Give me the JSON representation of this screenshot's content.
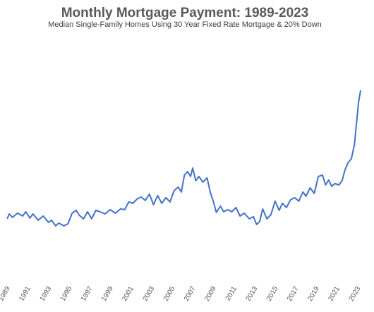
{
  "chart_data": {
    "type": "line",
    "title": "Monthly Mortgage Payment: 1989-2023",
    "subtitle": "Median Single-Family Homes Using 30 Year Fixed Rate Mortgage & 20% Down",
    "x": [
      1989.0,
      1989.2,
      1989.5,
      1990.0,
      1990.5,
      1990.8,
      1991.2,
      1991.5,
      1992.0,
      1992.5,
      1993.0,
      1993.3,
      1993.7,
      1994.0,
      1994.5,
      1994.9,
      1995.3,
      1995.7,
      1996.0,
      1996.4,
      1996.8,
      1997.2,
      1997.6,
      1998.0,
      1998.5,
      1999.0,
      1999.5,
      2000.0,
      2000.4,
      2000.8,
      2001.2,
      2001.6,
      2002.0,
      2002.4,
      2002.8,
      2003.2,
      2003.6,
      2004.0,
      2004.4,
      2004.8,
      2005.2,
      2005.6,
      2005.9,
      2006.2,
      2006.5,
      2006.8,
      2007.0,
      2007.3,
      2007.6,
      2008.0,
      2008.4,
      2008.7,
      2009.0,
      2009.3,
      2009.7,
      2010.0,
      2010.4,
      2010.8,
      2011.2,
      2011.6,
      2012.0,
      2012.5,
      2012.9,
      2013.2,
      2013.5,
      2013.8,
      2014.2,
      2014.6,
      2015.0,
      2015.4,
      2015.7,
      2016.1,
      2016.5,
      2016.9,
      2017.3,
      2017.7,
      2018.0,
      2018.4,
      2018.8,
      2019.2,
      2019.6,
      2019.9,
      2020.2,
      2020.5,
      2020.8,
      2021.2,
      2021.5,
      2021.8,
      2022.1,
      2022.4,
      2022.7,
      2022.9,
      2023.1,
      2023.3
    ],
    "series": [
      {
        "color": "#4472c4",
        "values": [
          132,
          139,
          134,
          140,
          136,
          142,
          133,
          139,
          130,
          136,
          127,
          130,
          122,
          126,
          122,
          125,
          140,
          144,
          137,
          132,
          142,
          132,
          144,
          142,
          139,
          145,
          140,
          146,
          145,
          156,
          154,
          160,
          163,
          158,
          167,
          152,
          165,
          154,
          162,
          156,
          172,
          177,
          170,
          194,
          199,
          192,
          204,
          186,
          192,
          184,
          190,
          170,
          157,
          141,
          150,
          142,
          145,
          142,
          148,
          136,
          140,
          132,
          135,
          124,
          128,
          146,
          132,
          138,
          157,
          144,
          154,
          148,
          159,
          162,
          157,
          170,
          164,
          176,
          168,
          192,
          194,
          180,
          187,
          178,
          182,
          180,
          186,
          202,
          212,
          217,
          237,
          267,
          297,
          314
        ]
      }
    ],
    "xlim": [
      1988.3,
      2024.6
    ],
    "ylim": [
      0,
      400
    ],
    "xticks": [
      1989,
      1991,
      1993,
      1995,
      1997,
      1999,
      2001,
      2003,
      2005,
      2007,
      2009,
      2011,
      2013,
      2015,
      2017,
      2019,
      2021,
      2023
    ]
  }
}
